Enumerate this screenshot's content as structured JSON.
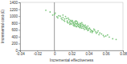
{
  "chart_data": {
    "type": "scatter",
    "x_label": "Incremental effectiveness",
    "y_label": "Incremental cost (£)",
    "color": "#7cc47c",
    "marker": "circle",
    "xlim": [
      -0.04,
      0.08
    ],
    "xticks": [
      -0.04,
      -0.02,
      0,
      0.02,
      0.04,
      0.06,
      0.08
    ],
    "ylim": [
      0,
      1400
    ],
    "yticks": [
      0,
      200,
      400,
      600,
      800,
      1000,
      1200,
      1400
    ],
    "x": [
      0.025,
      0.031,
      0.018,
      0.04,
      0.012,
      0.028,
      0.035,
      0.022,
      0.005,
      0.045,
      0.019,
      0.03,
      0.027,
      0.05,
      0.015,
      0.038,
      0.024,
      0.01,
      0.033,
      0.042,
      0.021,
      0.029,
      0.0,
      0.055,
      0.016,
      0.036,
      0.026,
      0.047,
      0.008,
      0.032,
      0.023,
      0.06,
      0.013,
      0.039,
      0.02,
      0.034,
      -0.005,
      0.044,
      0.017,
      0.028,
      0.025,
      0.052,
      0.011,
      0.037,
      0.022,
      0.031,
      0.003,
      0.048,
      0.019,
      0.041,
      0.027,
      0.064,
      0.014,
      0.035,
      0.024,
      0.03,
      -0.01,
      0.057,
      0.018,
      0.043,
      0.026,
      0.033,
      0.007,
      0.049,
      0.021,
      0.038,
      0.029,
      0.068,
      0.012,
      0.036,
      0.023,
      0.046,
      0.001,
      0.053,
      0.016,
      0.04,
      0.025,
      0.032,
      0.009,
      0.058,
      0.02,
      0.034,
      0.027,
      0.044,
      -0.002,
      0.062,
      0.015,
      0.039,
      0.022,
      0.03,
      0.004,
      0.051,
      0.018,
      0.037,
      0.026,
      0.072,
      0.01,
      0.042,
      0.024,
      0.031
    ],
    "values": [
      780,
      690,
      850,
      640,
      920,
      760,
      700,
      790,
      1010,
      560,
      880,
      720,
      820,
      530,
      860,
      620,
      740,
      960,
      760,
      610,
      830,
      680,
      1050,
      480,
      800,
      670,
      850,
      590,
      940,
      650,
      710,
      420,
      990,
      580,
      770,
      730,
      1120,
      520,
      900,
      700,
      860,
      460,
      880,
      690,
      820,
      770,
      980,
      540,
      780,
      650,
      730,
      390,
      930,
      610,
      800,
      790,
      1170,
      440,
      760,
      580,
      690,
      700,
      1000,
      500,
      870,
      660,
      750,
      340,
      850,
      740,
      760,
      620,
      1090,
      510,
      940,
      600,
      700,
      810,
      900,
      400,
      840,
      650,
      790,
      560,
      1030,
      450,
      820,
      710,
      740,
      660,
      950,
      570,
      810,
      630,
      770,
      320,
      1030,
      540,
      840,
      730
    ]
  }
}
